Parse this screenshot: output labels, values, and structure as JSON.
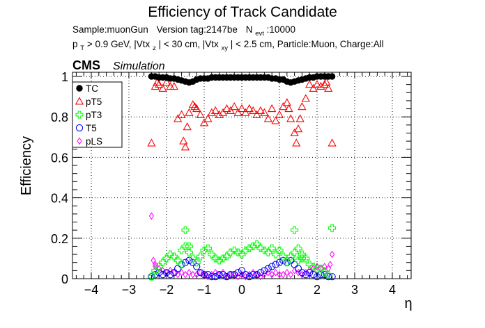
{
  "chart_data": {
    "type": "scatter",
    "title": "Efficiency of Track Candidate",
    "subtitle_line1": {
      "sample": "Sample:muonGun",
      "version": "Version tag:2147be",
      "nevt_label": "N",
      "nevt_sub": "evt",
      "nevt_value": ":10000"
    },
    "subtitle_line2": {
      "pt_label": "p",
      "pt_sub": "T",
      "pt_cut": " > 0.9 GeV, |Vtx",
      "vtxz_sub": "z",
      "vtxz_cut": "| < 30 cm, |Vtx",
      "vtxxy_sub": "xy",
      "rest": "| < 2.5 cm, Particle:Muon, Charge:All"
    },
    "cms_label": "CMS",
    "simulation_label": "Simulation",
    "xlabel": "η",
    "ylabel": "Efficiency",
    "xlim": [
      -4.5,
      4.5
    ],
    "ylim": [
      0,
      1.02
    ],
    "xticks": [
      -4,
      -3,
      -2,
      -1,
      0,
      1,
      2,
      3,
      4
    ],
    "xtick_labels": [
      "−4",
      "−3",
      "−2",
      "−1",
      "0",
      "1",
      "2",
      "3",
      "4"
    ],
    "yticks": [
      0,
      0.2,
      0.4,
      0.6,
      0.8,
      1
    ],
    "ytick_labels": [
      "0",
      "0.2",
      "0.4",
      "0.6",
      "0.8",
      "1"
    ],
    "grid": true,
    "legend_position": "top-left",
    "series": [
      {
        "name": "TC",
        "marker": "filled-circle",
        "color": "#000000",
        "x": [
          -2.4,
          -2.3,
          -2.2,
          -2.1,
          -2.0,
          -1.9,
          -1.8,
          -1.7,
          -1.6,
          -1.5,
          -1.4,
          -1.3,
          -1.2,
          -1.1,
          -1.0,
          -0.9,
          -0.8,
          -0.7,
          -0.6,
          -0.5,
          -0.4,
          -0.3,
          -0.2,
          -0.1,
          0.0,
          0.1,
          0.2,
          0.3,
          0.4,
          0.5,
          0.6,
          0.7,
          0.8,
          0.9,
          1.0,
          1.1,
          1.2,
          1.3,
          1.4,
          1.5,
          1.6,
          1.7,
          1.8,
          1.9,
          2.0,
          2.1,
          2.2,
          2.3,
          2.4
        ],
        "y": [
          1.0,
          1.0,
          0.995,
          0.995,
          0.995,
          0.99,
          0.99,
          0.985,
          0.98,
          0.975,
          0.97,
          0.975,
          0.985,
          0.99,
          0.99,
          0.99,
          0.995,
          0.995,
          0.995,
          0.995,
          0.995,
          0.995,
          0.995,
          0.995,
          0.995,
          0.995,
          0.995,
          0.995,
          0.995,
          0.995,
          0.995,
          0.995,
          0.99,
          0.99,
          0.985,
          0.985,
          0.975,
          0.97,
          0.975,
          0.98,
          0.985,
          0.99,
          0.995,
          0.995,
          1.0,
          1.0,
          1.0,
          1.0,
          1.0
        ]
      },
      {
        "name": "pT5",
        "marker": "open-triangle",
        "color": "#ff0000",
        "x": [
          -2.4,
          -2.3,
          -2.2,
          -2.1,
          -2.0,
          -1.9,
          -1.8,
          -1.7,
          -1.6,
          -1.5,
          -1.4,
          -1.3,
          -1.2,
          -1.1,
          -1.0,
          -0.9,
          -0.8,
          -0.7,
          -0.6,
          -0.5,
          -0.4,
          -0.3,
          -0.2,
          -0.1,
          0.0,
          0.1,
          0.2,
          0.3,
          0.4,
          0.5,
          0.6,
          0.7,
          0.8,
          0.9,
          1.0,
          1.1,
          1.2,
          1.3,
          1.4,
          1.5,
          1.6,
          1.7,
          1.8,
          1.9,
          2.0,
          2.1,
          2.2,
          2.3,
          2.4,
          -1.55,
          -1.45,
          -1.25,
          1.25,
          1.45,
          1.55,
          -2.25,
          2.25
        ],
        "y": [
          0.67,
          0.95,
          0.96,
          0.94,
          0.97,
          0.95,
          0.95,
          0.79,
          0.81,
          0.65,
          0.82,
          0.86,
          0.84,
          0.81,
          0.77,
          0.79,
          0.82,
          0.83,
          0.81,
          0.82,
          0.84,
          0.83,
          0.85,
          0.82,
          0.84,
          0.82,
          0.84,
          0.83,
          0.81,
          0.83,
          0.82,
          0.79,
          0.84,
          0.78,
          0.81,
          0.85,
          0.87,
          0.79,
          0.72,
          0.74,
          0.85,
          0.89,
          0.96,
          0.94,
          0.96,
          0.95,
          0.96,
          0.94,
          0.67,
          0.68,
          0.75,
          0.85,
          0.84,
          0.67,
          0.79,
          0.97,
          0.97
        ]
      },
      {
        "name": "pT3",
        "marker": "open-cross",
        "color": "#00ff00",
        "x": [
          -2.4,
          -2.3,
          -2.2,
          -2.1,
          -2.0,
          -1.9,
          -1.8,
          -1.7,
          -1.6,
          -1.5,
          -1.4,
          -1.3,
          -1.2,
          -1.1,
          -1.0,
          -0.9,
          -0.8,
          -0.7,
          -0.6,
          -0.5,
          -0.4,
          -0.3,
          -0.2,
          -0.1,
          0.0,
          0.1,
          0.2,
          0.3,
          0.4,
          0.5,
          0.6,
          0.7,
          0.8,
          0.9,
          1.0,
          1.1,
          1.2,
          1.3,
          1.4,
          1.5,
          1.6,
          1.7,
          1.8,
          1.9,
          2.0,
          2.1,
          2.2,
          2.3,
          2.4,
          -1.4,
          -1.6,
          -1.5,
          1.4,
          1.5,
          1.6
        ],
        "y": [
          0.01,
          0.04,
          0.06,
          0.08,
          0.1,
          0.12,
          0.11,
          0.09,
          0.14,
          0.24,
          0.16,
          0.1,
          0.08,
          0.11,
          0.14,
          0.15,
          0.12,
          0.1,
          0.09,
          0.1,
          0.11,
          0.13,
          0.14,
          0.13,
          0.12,
          0.14,
          0.15,
          0.16,
          0.17,
          0.15,
          0.14,
          0.13,
          0.15,
          0.12,
          0.14,
          0.11,
          0.08,
          0.11,
          0.24,
          0.15,
          0.12,
          0.1,
          0.07,
          0.06,
          0.05,
          0.05,
          0.03,
          0.02,
          0.25,
          0.13,
          0.07,
          0.16,
          0.13,
          0.09,
          0.1
        ]
      },
      {
        "name": "T5",
        "marker": "open-circle",
        "color": "#0000ff",
        "x": [
          -2.4,
          -2.3,
          -2.2,
          -2.1,
          -2.0,
          -1.9,
          -1.8,
          -1.7,
          -1.6,
          -1.5,
          -1.4,
          -1.3,
          -1.2,
          -1.1,
          -1.0,
          -0.9,
          -0.8,
          -0.7,
          -0.6,
          -0.5,
          -0.4,
          -0.3,
          -0.2,
          -0.1,
          0.0,
          0.1,
          0.2,
          0.3,
          0.4,
          0.5,
          0.6,
          0.7,
          0.8,
          0.9,
          1.0,
          1.1,
          1.2,
          1.3,
          1.4,
          1.5,
          1.6,
          1.7,
          1.8,
          1.9,
          2.0,
          2.1,
          2.2,
          2.3,
          2.4
        ],
        "y": [
          0.01,
          0.02,
          0.03,
          0.02,
          0.03,
          0.02,
          0.03,
          0.05,
          0.07,
          0.08,
          0.09,
          0.08,
          0.06,
          0.03,
          0.02,
          0.02,
          0.01,
          0.01,
          0.02,
          0.02,
          0.01,
          0.02,
          0.02,
          0.03,
          0.04,
          0.02,
          0.01,
          0.02,
          0.02,
          0.03,
          0.04,
          0.05,
          0.06,
          0.07,
          0.08,
          0.09,
          0.08,
          0.09,
          0.07,
          0.05,
          0.03,
          0.02,
          0.03,
          0.02,
          0.01,
          0.02,
          0.02,
          0.01,
          0.01
        ]
      },
      {
        "name": "pLS",
        "marker": "open-diamond",
        "color": "#ff00ff",
        "x": [
          -2.4,
          -2.3,
          -2.2,
          -2.1,
          -2.0,
          -1.9,
          -1.8,
          -1.7,
          -1.6,
          -1.5,
          -1.4,
          -1.3,
          -1.2,
          -1.1,
          -1.0,
          -0.9,
          -0.8,
          -0.7,
          -0.6,
          -0.5,
          -0.4,
          -0.3,
          -0.2,
          -0.1,
          0.0,
          0.1,
          0.2,
          0.3,
          0.4,
          0.5,
          0.6,
          0.7,
          0.8,
          0.9,
          1.0,
          1.1,
          1.2,
          1.3,
          1.4,
          1.5,
          1.6,
          1.7,
          1.8,
          1.9,
          2.0,
          2.1,
          2.2,
          2.3,
          2.4,
          -2.35,
          -2.3,
          2.35
        ],
        "y": [
          0.31,
          0.06,
          0.05,
          0.04,
          0.03,
          0.04,
          0.03,
          0.02,
          0.03,
          0.02,
          0.03,
          0.02,
          0.02,
          0.03,
          0.02,
          0.01,
          0.02,
          0.03,
          0.02,
          0.03,
          0.01,
          0.02,
          0.02,
          0.01,
          0.02,
          0.01,
          0.02,
          0.03,
          0.02,
          0.01,
          0.02,
          0.03,
          0.02,
          0.03,
          0.02,
          0.02,
          0.03,
          0.02,
          0.04,
          0.03,
          0.02,
          0.03,
          0.04,
          0.05,
          0.06,
          0.05,
          0.06,
          0.05,
          0.12,
          0.09,
          0.07,
          0.07
        ]
      }
    ]
  }
}
